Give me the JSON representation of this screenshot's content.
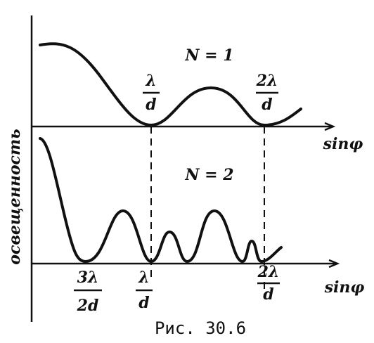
{
  "y_axis_label": "освещенность",
  "panels": [
    {
      "label": "N = 1",
      "x_axis_label": "sinφ",
      "marks": [
        {
          "numerator": "λ",
          "denominator": "d"
        },
        {
          "numerator": "2λ",
          "denominator": "d"
        }
      ]
    },
    {
      "label": "N = 2",
      "x_axis_label": "sinφ",
      "marks": [
        {
          "numerator": "3λ",
          "denominator": "2d"
        },
        {
          "numerator": "λ",
          "denominator": "d"
        },
        {
          "numerator": "2λ",
          "denominator": "d"
        }
      ]
    }
  ],
  "caption": "Рис. 30.6"
}
